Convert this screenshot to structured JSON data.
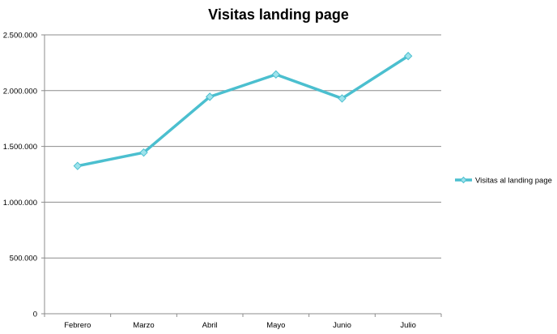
{
  "chart_data": {
    "type": "line",
    "title": "Visitas landing page",
    "xlabel": "",
    "ylabel": "",
    "categories": [
      "Febrero",
      "Marzo",
      "Abril",
      "Mayo",
      "Junio",
      "Julio"
    ],
    "series": [
      {
        "name": "Visitas al landing page",
        "values": [
          1325000,
          1445000,
          1945000,
          2145000,
          1930000,
          2310000
        ],
        "color": "#4BBFCF",
        "marker": "diamond",
        "marker_color": "#9EE3EC"
      }
    ],
    "ylim": [
      0,
      2500000
    ],
    "yticks": [
      0,
      500000,
      1000000,
      1500000,
      2000000,
      2500000
    ],
    "ytick_labels": [
      "0",
      "500.000",
      "1.000.000",
      "1.500.000",
      "2.000.000",
      "2.500.000"
    ],
    "grid": true,
    "legend_position": "right"
  }
}
